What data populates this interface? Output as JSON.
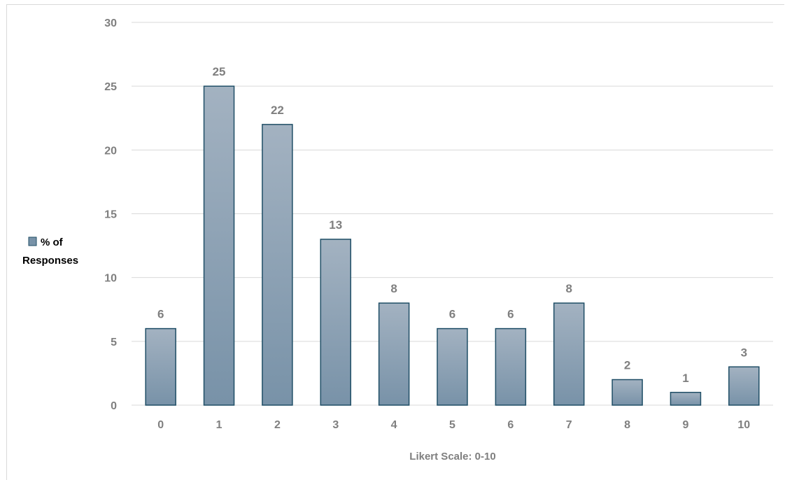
{
  "chart_data": {
    "type": "bar",
    "categories": [
      "0",
      "1",
      "2",
      "3",
      "4",
      "5",
      "6",
      "7",
      "8",
      "9",
      "10"
    ],
    "series": [
      {
        "name": "% of Responses",
        "values": [
          6,
          25,
          22,
          13,
          8,
          6,
          6,
          8,
          2,
          1,
          3
        ]
      }
    ],
    "xlabel": "Likert Scale: 0-10",
    "ylabel": "",
    "ylim": [
      0,
      30
    ],
    "yticks": [
      0,
      5,
      10,
      15,
      20,
      25,
      30
    ],
    "data_labels": true,
    "grid": true,
    "legend": {
      "position": "left",
      "label_lines": [
        "% of",
        "Responses"
      ]
    },
    "colors": {
      "bar_fill_top": "#a3b2c1",
      "bar_fill_bottom": "#7892a8",
      "bar_stroke": "#1f4e66",
      "gridline": "#d9d9d9",
      "axis_text": "#7f7f7f",
      "legend_text": "#000000"
    }
  }
}
